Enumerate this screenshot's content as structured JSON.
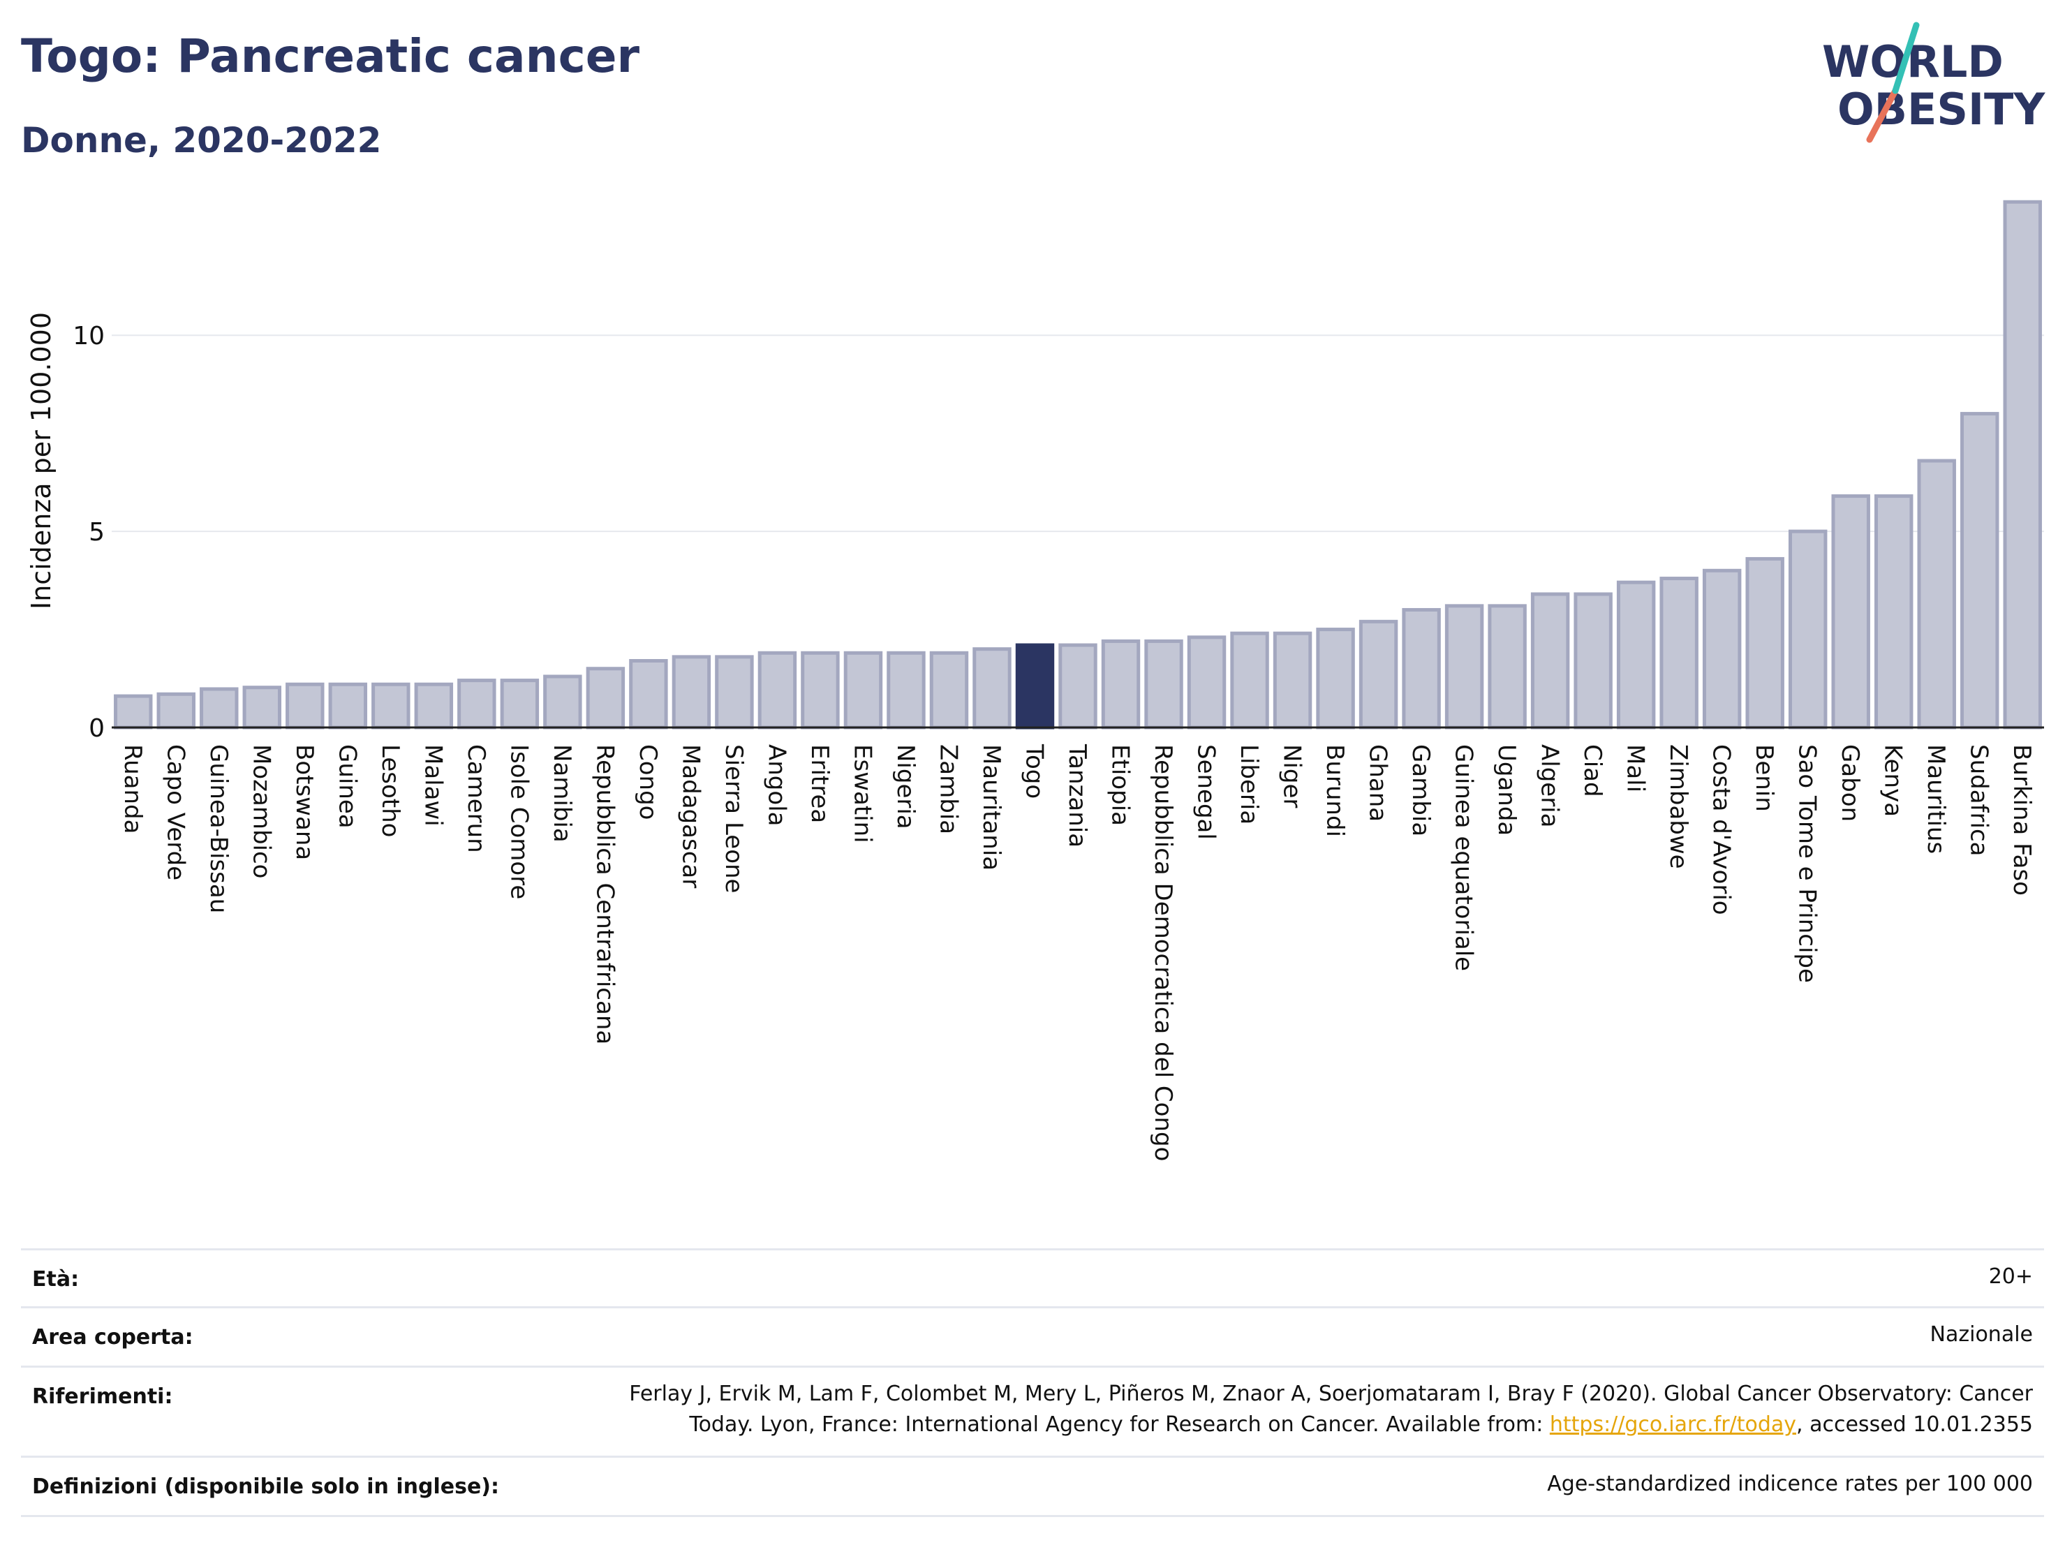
{
  "header": {
    "title": "Togo: Pancreatic cancer",
    "subtitle": "Donne, 2020-2022"
  },
  "logo": {
    "line1": "WORLD",
    "line2": "OBESITY"
  },
  "colors": {
    "bar": "#c3c6d5",
    "bar_edge": "#a3a7bf",
    "highlight": "#2b3562",
    "grid": "#e6e8ee",
    "axis": "#222222"
  },
  "chart_data": {
    "type": "bar",
    "title": "Togo: Pancreatic cancer",
    "subtitle": "Donne, 2020-2022",
    "ylabel": "Incidenza per 100.000",
    "xlabel": "",
    "ylim": [
      0,
      13.6
    ],
    "yticks": [
      0,
      5,
      10
    ],
    "grid": true,
    "highlight": "Togo",
    "categories": [
      "Ruanda",
      "Capo Verde",
      "Guinea-Bissau",
      "Mozambico",
      "Botswana",
      "Guinea",
      "Lesotho",
      "Malawi",
      "Camerun",
      "Isole Comore",
      "Namibia",
      "Repubblica Centrafricana",
      "Congo",
      "Madagascar",
      "Sierra Leone",
      "Angola",
      "Eritrea",
      "Eswatini",
      "Nigeria",
      "Zambia",
      "Mauritania",
      "Togo",
      "Tanzania",
      "Etiopia",
      "Repubblica Democratica del Congo",
      "Senegal",
      "Liberia",
      "Niger",
      "Burundi",
      "Ghana",
      "Gambia",
      "Guinea equatoriale",
      "Uganda",
      "Algeria",
      "Ciad",
      "Mali",
      "Zimbabwe",
      "Costa d'Avorio",
      "Benin",
      "Sao Tome e Principe",
      "Gabon",
      "Kenya",
      "Mauritius",
      "Sudafrica",
      "Burkina Faso"
    ],
    "values": [
      0.8,
      0.85,
      0.98,
      1.02,
      1.1,
      1.1,
      1.1,
      1.1,
      1.2,
      1.2,
      1.3,
      1.5,
      1.7,
      1.8,
      1.8,
      1.9,
      1.9,
      1.9,
      1.9,
      1.9,
      2.0,
      2.1,
      2.1,
      2.2,
      2.2,
      2.3,
      2.4,
      2.4,
      2.5,
      2.7,
      3.0,
      3.1,
      3.1,
      3.4,
      3.4,
      3.7,
      3.8,
      4.0,
      4.3,
      5.0,
      5.9,
      5.9,
      6.8,
      8.0,
      13.4
    ]
  },
  "meta": {
    "age_label": "Età:",
    "age_value": "20+",
    "area_label": "Area coperta:",
    "area_value": "Nazionale",
    "ref_label": "Riferimenti:",
    "ref_line1": "Ferlay J, Ervik M, Lam F, Colombet M, Mery L, Piñeros M, Znaor A, Soerjomataram I, Bray F (2020). Global Cancer Observatory: Cancer",
    "ref_line2_pre": "Today. Lyon, France: International Agency for Research on Cancer. Available from: ",
    "ref_link": "https://gco.iarc.fr/today",
    "ref_line2_post": ", accessed 10.01.2355",
    "def_label": "Definizioni (disponibile solo in inglese):",
    "def_value": "Age-standardized indicence rates per 100 000"
  }
}
